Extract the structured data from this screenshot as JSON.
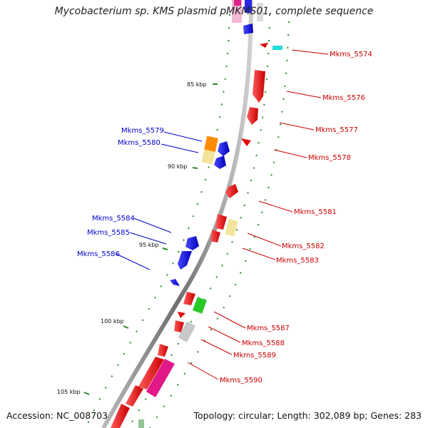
{
  "title": "Mycobacterium sp. KMS plasmid pMKMS01, complete sequence",
  "accession": "Accession: NC_008703",
  "summary": "Topology: circular; Length: 302,089 bp; Genes: 283",
  "colors": {
    "forward_label": "#0000cc",
    "reverse_label": "#cc0000",
    "backbone": "#888888",
    "tick": "#2a8a2a"
  },
  "ticks": [
    {
      "label": "85 kbp"
    },
    {
      "label": "90 kbp"
    },
    {
      "label": "95 kbp"
    },
    {
      "label": "100 kbp"
    },
    {
      "label": "105 kbp"
    }
  ],
  "gene_labels": [
    {
      "text": "Mkms_5574",
      "strand": "reverse"
    },
    {
      "text": "Mkms_5576",
      "strand": "reverse"
    },
    {
      "text": "Mkms_5577",
      "strand": "reverse"
    },
    {
      "text": "Mkms_5578",
      "strand": "reverse"
    },
    {
      "text": "Mkms_5579",
      "strand": "forward"
    },
    {
      "text": "Mkms_5580",
      "strand": "forward"
    },
    {
      "text": "Mkms_5581",
      "strand": "reverse"
    },
    {
      "text": "Mkms_5582",
      "strand": "reverse"
    },
    {
      "text": "Mkms_5583",
      "strand": "reverse"
    },
    {
      "text": "Mkms_5584",
      "strand": "forward"
    },
    {
      "text": "Mkms_5585",
      "strand": "forward"
    },
    {
      "text": "Mkms_5586",
      "strand": "forward"
    },
    {
      "text": "Mkms_5587",
      "strand": "reverse"
    },
    {
      "text": "Mkms_5588",
      "strand": "reverse"
    },
    {
      "text": "Mkms_5589",
      "strand": "reverse"
    },
    {
      "text": "Mkms_5590",
      "strand": "reverse"
    }
  ]
}
